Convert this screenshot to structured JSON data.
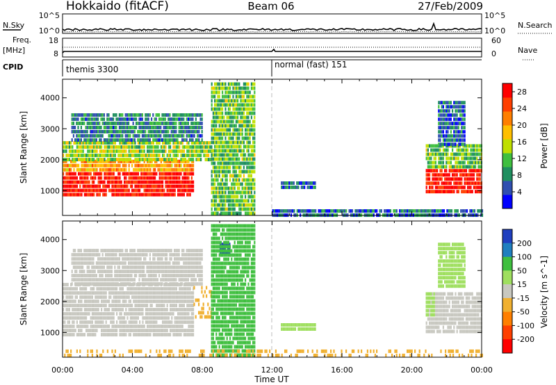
{
  "header": {
    "station": "Hokkaido (fitACF)",
    "beam": "Beam 06",
    "date": "27/Feb/2009"
  },
  "strips": {
    "nsky_label": "N.Sky",
    "nsky_ticks": [
      "10^5",
      "10^0"
    ],
    "nsearch_label": "N.Search",
    "nsearch_ticks": [
      "10^5",
      "10^0"
    ],
    "freq_label": "Freq.",
    "freq_unit": "[MHz]",
    "freq_ticks": [
      "18",
      "8"
    ],
    "nave_label": "Nave",
    "nave_ticks": [
      "60",
      "0"
    ],
    "cpid_label": "CPID",
    "cpid_segments": [
      {
        "label": "themis 3300",
        "start_hour": 0
      },
      {
        "label": "normal (fast) 151",
        "start_hour": 12
      }
    ]
  },
  "colors": {
    "power_scale": [
      "#0000ff",
      "#2f4fb0",
      "#1f8f5f",
      "#3fbf3f",
      "#bfdf00",
      "#ffbf00",
      "#ff7f00",
      "#ff3f00",
      "#ff0000"
    ],
    "velocity_scale": [
      "#1f3fbf",
      "#1f7fbf",
      "#3fbf3f",
      "#9fdf5f",
      "#c8c8c0",
      "#f0b030",
      "#ff7f00",
      "#ff3f00",
      "#ff0000"
    ]
  },
  "chart_data": [
    {
      "type": "heatmap",
      "name": "power",
      "xlabel": "Time UT",
      "ylabel": "Slant Range [km]",
      "xlim": [
        0,
        24
      ],
      "ylim": [
        200,
        4600
      ],
      "x_ticks": [
        "00:00",
        "04:00",
        "08:00",
        "12:00",
        "16:00",
        "20:00",
        "00:00"
      ],
      "y_ticks": [
        "1000",
        "2000",
        "3000",
        "4000"
      ],
      "colorbar_label": "Power [dB]",
      "colorbar_ticks": [
        "4",
        "8",
        "12",
        "16",
        "20",
        "24",
        "28"
      ],
      "colorbar_range": [
        0,
        30
      ],
      "regions": [
        {
          "t": [
            0.0,
            7.5
          ],
          "range": [
            900,
            1600
          ],
          "value": 28
        },
        {
          "t": [
            0.0,
            7.5
          ],
          "range": [
            1600,
            2000
          ],
          "value": 20
        },
        {
          "t": [
            0.0,
            8.5
          ],
          "range": [
            2000,
            2600
          ],
          "value": 14
        },
        {
          "t": [
            0.5,
            8.0
          ],
          "range": [
            2600,
            3500
          ],
          "value": 8
        },
        {
          "t": [
            8.5,
            11.0
          ],
          "range": [
            300,
            4500
          ],
          "value": 12
        },
        {
          "t": [
            12.5,
            14.5
          ],
          "range": [
            1100,
            1300
          ],
          "value": 6
        },
        {
          "t": [
            12.0,
            24.0
          ],
          "range": [
            250,
            400
          ],
          "value": 6
        },
        {
          "t": [
            20.8,
            24.0
          ],
          "range": [
            900,
            1700
          ],
          "value": 28
        },
        {
          "t": [
            20.8,
            24.0
          ],
          "range": [
            1700,
            2500
          ],
          "value": 12
        },
        {
          "t": [
            21.5,
            23.0
          ],
          "range": [
            2500,
            3900
          ],
          "value": 6
        }
      ]
    },
    {
      "type": "heatmap",
      "name": "velocity",
      "xlabel": "Time UT",
      "ylabel": "Slant Range [km]",
      "xlim": [
        0,
        24
      ],
      "ylim": [
        200,
        4600
      ],
      "x_ticks": [
        "00:00",
        "04:00",
        "08:00",
        "12:00",
        "16:00",
        "20:00",
        "00:00"
      ],
      "y_ticks": [
        "1000",
        "2000",
        "3000",
        "4000"
      ],
      "colorbar_label": "Velocity [m s^-1]",
      "colorbar_ticks": [
        "200",
        "100",
        "50",
        "15",
        "-15",
        "-50",
        "-100",
        "-200"
      ],
      "colorbar_range": [
        -250,
        250
      ],
      "regions": [
        {
          "t": [
            0.0,
            7.5
          ],
          "range": [
            900,
            2600
          ],
          "value": 0
        },
        {
          "t": [
            0.5,
            8.0
          ],
          "range": [
            2600,
            3700
          ],
          "value": 0
        },
        {
          "t": [
            7.5,
            8.5
          ],
          "range": [
            1500,
            2500
          ],
          "value": -30
        },
        {
          "t": [
            9.0,
            9.6
          ],
          "range": [
            3500,
            3900
          ],
          "value": 220
        },
        {
          "t": [
            8.5,
            11.0
          ],
          "range": [
            300,
            4500
          ],
          "value": 60
        },
        {
          "t": [
            12.5,
            14.5
          ],
          "range": [
            1100,
            1300
          ],
          "value": 40
        },
        {
          "t": [
            0.0,
            24.0
          ],
          "range": [
            250,
            450
          ],
          "value": -40
        },
        {
          "t": [
            20.8,
            24.0
          ],
          "range": [
            1000,
            2300
          ],
          "value": 0
        },
        {
          "t": [
            20.8,
            21.3
          ],
          "range": [
            1600,
            2300
          ],
          "value": 40
        },
        {
          "t": [
            21.5,
            23.0
          ],
          "range": [
            2500,
            3900
          ],
          "value": 40
        }
      ]
    }
  ]
}
